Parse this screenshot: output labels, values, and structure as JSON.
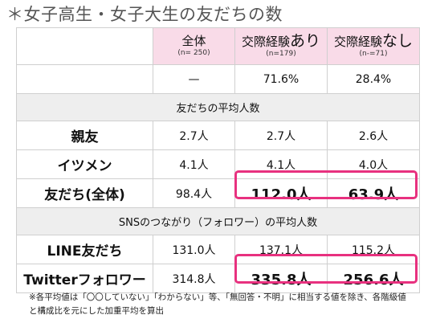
{
  "title": "＊女子高生・女子大生の友だちの数",
  "header": {
    "col1": {
      "label": "全体",
      "sub": "(n= 250)"
    },
    "col2": {
      "label_prefix": "交際経験",
      "label_suffix": "あり",
      "sub": "(n=179)"
    },
    "col3": {
      "label_prefix": "交際経験",
      "label_suffix": "なし",
      "sub": "(n-=71)"
    }
  },
  "experience_row": {
    "values": [
      "—",
      "71.6%",
      "28.4%"
    ]
  },
  "section1": "友だちの平均人数",
  "section1_rows": [
    {
      "label": "親友",
      "values": [
        "2.7人",
        "2.7人",
        "2.6人"
      ]
    },
    {
      "label": "イツメン",
      "values": [
        "4.1人",
        "4.1人",
        "4.0人"
      ]
    },
    {
      "label": "友だち(全体)",
      "values": [
        "98.4人",
        "112.0人",
        "63.9人"
      ]
    }
  ],
  "section2": "SNSのつながり（フォロワー）の平均人数",
  "section2_rows": [
    {
      "label": "LINE友だち",
      "values": [
        "131.0人",
        "137.1人",
        "115.2人"
      ]
    },
    {
      "label": "Twitterフォロワー",
      "values": [
        "314.8人",
        "335.8人",
        "256.6人"
      ]
    }
  ],
  "note": "※各平均値は「〇〇していない」「わからない」等、「無回答・不明」に相当する値を除き、各階級値と構成比を元にした加重平均を算出",
  "colors": {
    "header_pink": "#f9dbe8",
    "highlight": "#e8317f",
    "section_gray": "#eeeeee"
  }
}
